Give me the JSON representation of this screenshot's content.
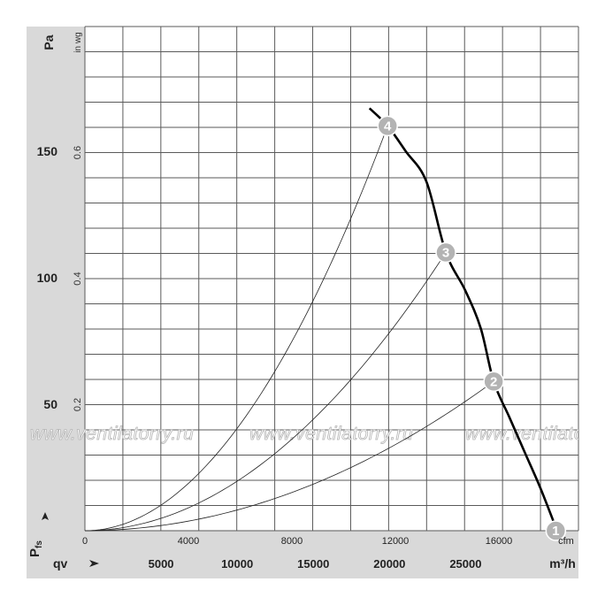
{
  "chart_data": {
    "type": "line",
    "y_unit_primary": "Pa",
    "y_unit_secondary": "in wg",
    "y_ticks_pa": [
      50,
      100,
      150
    ],
    "y_ticks_inwg": [
      "0.2",
      "0.4",
      "0.6"
    ],
    "x_unit_cfm": "cfm",
    "x_ticks_cfm": [
      0,
      4000,
      8000,
      12000,
      16000
    ],
    "x_label_qv": "qv",
    "x_unit_m3h": "m³/h",
    "x_ticks_m3h": [
      5000,
      10000,
      15000,
      20000,
      25000
    ],
    "y_axis_label": "Pfs",
    "xlim_cfm": [
      0,
      19000
    ],
    "ylim_pa": [
      0,
      200
    ],
    "grid": true,
    "watermark": "www.ventilatorry.ru",
    "fan_curve": {
      "x_cfm": [
        11000,
        11700,
        12400,
        13200,
        13950,
        14700,
        15300,
        15800,
        16400,
        17000,
        17600,
        18250
      ],
      "y_pa": [
        167,
        160,
        150,
        138,
        110,
        95,
        80,
        59,
        45,
        31,
        17,
        0
      ]
    },
    "operating_points": [
      {
        "label": "1",
        "x_cfm": 18200,
        "y_pa": 0
      },
      {
        "label": "2",
        "x_cfm": 15800,
        "y_pa": 59
      },
      {
        "label": "3",
        "x_cfm": 13950,
        "y_pa": 110
      },
      {
        "label": "4",
        "x_cfm": 11700,
        "y_pa": 160
      }
    ]
  }
}
